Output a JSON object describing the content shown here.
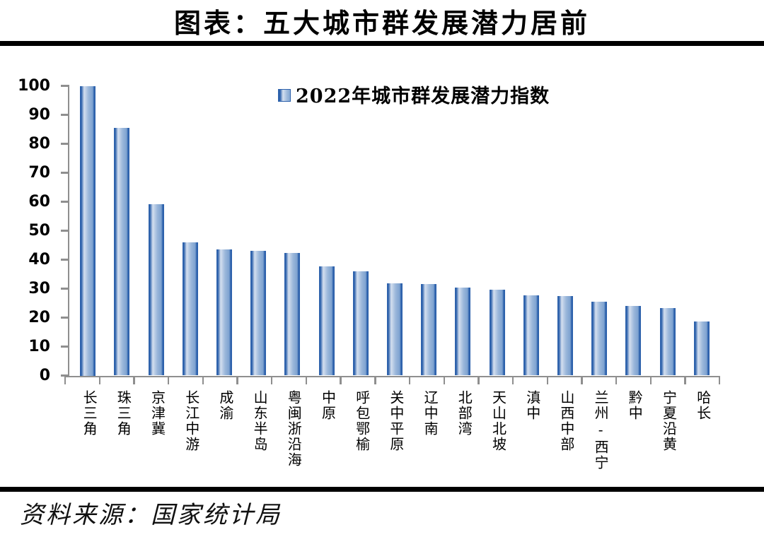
{
  "title": "图表：五大城市群发展潜力居前",
  "source": "资料来源：国家统计局",
  "chart_data": {
    "type": "bar",
    "title": "图表：五大城市群发展潜力居前",
    "legend": "2022年城市群发展潜力指数",
    "legend_position": "top-center",
    "categories": [
      "长三角",
      "珠三角",
      "京津冀",
      "长江中游",
      "成渝",
      "山东半岛",
      "粤闽浙沿海",
      "中原",
      "呼包鄂榆",
      "关中平原",
      "辽中南",
      "北部湾",
      "天山北坡",
      "滇中",
      "山西中部",
      "兰州-西宁",
      "黔中",
      "宁夏沿黄",
      "哈长"
    ],
    "values": [
      100,
      85.6,
      59.2,
      46.0,
      43.5,
      43.0,
      42.4,
      37.6,
      35.9,
      31.8,
      31.6,
      30.3,
      29.6,
      27.8,
      27.4,
      25.5,
      24.1,
      23.4,
      18.7
    ],
    "ylabel": "",
    "xlabel": "",
    "ylim": [
      0,
      100
    ],
    "ytick_step": 10,
    "grid": false,
    "source_note": "资料来源：国家统计局",
    "colors": {
      "bar_edge": "#2e62ac",
      "bar_light": "#d4dfef",
      "bar_mid": "#9cb8db",
      "bar_shade": "#7da2d0",
      "axis": "#8f8f8f",
      "text": "#000000",
      "divider": "#000000"
    }
  }
}
